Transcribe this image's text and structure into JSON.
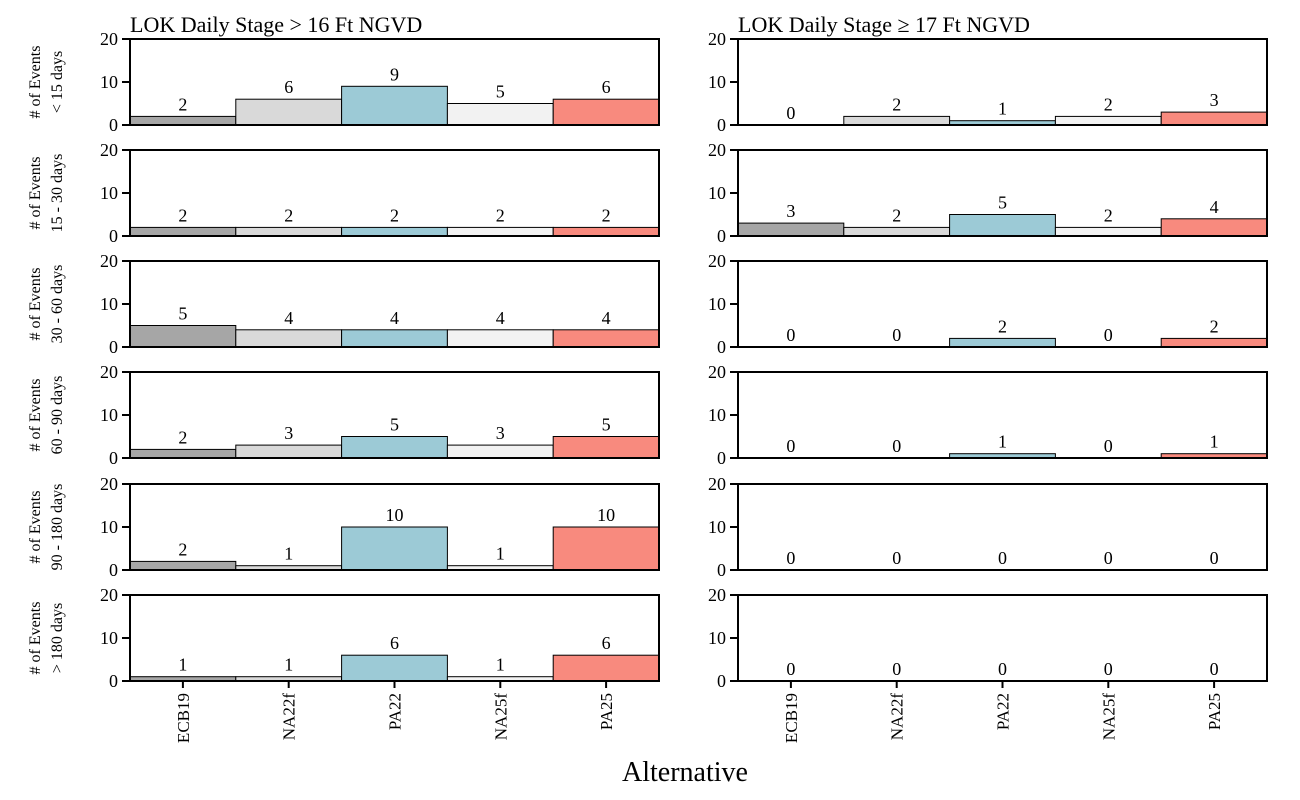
{
  "chart_data": {
    "type": "bar",
    "xlabel": "Alternative",
    "categories": [
      "ECB19",
      "NA22f",
      "PA22",
      "NA25f",
      "PA25"
    ],
    "colors": [
      "#a6a6a6",
      "#d9d9d9",
      "#9ccad6",
      "#f2f2f2",
      "#f88a7e"
    ],
    "ylabel_prefix": "# of Events",
    "ylim": [
      0,
      20
    ],
    "yticks": [
      0,
      10,
      20
    ],
    "panels": [
      {
        "title": "LOK Daily Stage > 16 Ft NGVD",
        "rows": [
          {
            "duration": "< 15 days",
            "values": [
              2,
              6,
              9,
              5,
              6
            ]
          },
          {
            "duration": "15 - 30 days",
            "values": [
              2,
              2,
              2,
              2,
              2
            ]
          },
          {
            "duration": "30 - 60 days",
            "values": [
              5,
              4,
              4,
              4,
              4
            ]
          },
          {
            "duration": "60 - 90 days",
            "values": [
              2,
              3,
              5,
              3,
              5
            ]
          },
          {
            "duration": "90 - 180 days",
            "values": [
              2,
              1,
              10,
              1,
              10
            ]
          },
          {
            "duration": "> 180 days",
            "values": [
              1,
              1,
              6,
              1,
              6
            ]
          }
        ]
      },
      {
        "title": "LOK Daily Stage ≥ 17 Ft NGVD",
        "rows": [
          {
            "duration": "< 15 days",
            "values": [
              0,
              2,
              1,
              2,
              3
            ]
          },
          {
            "duration": "15 - 30 days",
            "values": [
              3,
              2,
              5,
              2,
              4
            ]
          },
          {
            "duration": "30 - 60 days",
            "values": [
              0,
              0,
              2,
              0,
              2
            ]
          },
          {
            "duration": "60 - 90 days",
            "values": [
              0,
              0,
              1,
              0,
              1
            ]
          },
          {
            "duration": "90 - 180 days",
            "values": [
              0,
              0,
              0,
              0,
              0
            ]
          },
          {
            "duration": "> 180 days",
            "values": [
              0,
              0,
              0,
              0,
              0
            ]
          }
        ]
      }
    ]
  }
}
